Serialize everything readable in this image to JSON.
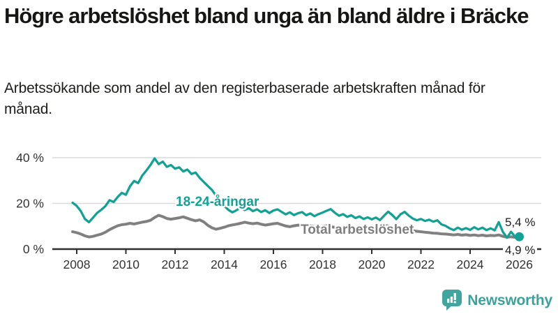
{
  "header": {
    "title": "Högre arbetslöshet bland unga än bland äldre i Bräcke",
    "subtitle": "Arbetssökande som andel av den registerbaserade arbetskraften månad för månad."
  },
  "footer": {
    "brand": "Newsworthy",
    "brand_color": "#3ba29b"
  },
  "chart_data": {
    "type": "line",
    "title": "Högre arbetslöshet bland unga än bland äldre i Bräcke",
    "subtitle": "Arbetssökande som andel av den registerbaserade arbetskraften månad för månad.",
    "grid": "horizontal-only",
    "legend_position": "inline-labels",
    "xlim": [
      2007.8,
      2026.2
    ],
    "ylim": [
      0,
      43
    ],
    "x_start": 2007.8333,
    "x_step": 0.1666667,
    "axis_color": "#2f2f2f",
    "grid_color": "#d9d9d9",
    "tick_text_color": "#333333",
    "y_ticks": [
      {
        "value": 0,
        "label": "0 %"
      },
      {
        "value": 20,
        "label": "20 %"
      },
      {
        "value": 40,
        "label": "40 %"
      }
    ],
    "x_ticks": [
      {
        "year": 2008,
        "label": "2008"
      },
      {
        "year": 2010,
        "label": "2010"
      },
      {
        "year": 2012,
        "label": "2012"
      },
      {
        "year": 2014,
        "label": "2014"
      },
      {
        "year": 2016,
        "label": "2016"
      },
      {
        "year": 2018,
        "label": "2018"
      },
      {
        "year": 2020,
        "label": "2020"
      },
      {
        "year": 2022,
        "label": "2022"
      },
      {
        "year": 2024,
        "label": "2024"
      },
      {
        "year": 2026,
        "label": "2026"
      }
    ],
    "series": [
      {
        "name": "Total arbetslöshet",
        "color": "#808080",
        "width": 4,
        "end_label": "4,9 %",
        "end_dot": false,
        "values": [
          7.6,
          7.2,
          6.6,
          5.8,
          5.3,
          5.6,
          6.1,
          6.6,
          7.4,
          8.5,
          9.4,
          10.2,
          10.7,
          10.9,
          11.3,
          11.0,
          11.4,
          11.8,
          12.1,
          12.6,
          13.8,
          14.8,
          14.2,
          13.4,
          13.1,
          13.4,
          13.7,
          14.1,
          13.5,
          12.9,
          12.4,
          12.8,
          11.9,
          10.4,
          9.3,
          8.7,
          9.1,
          9.6,
          10.2,
          10.6,
          10.9,
          11.3,
          11.8,
          11.4,
          11.1,
          11.4,
          10.9,
          10.5,
          10.8,
          11.1,
          11.3,
          10.7,
          10.1,
          9.8,
          10.2,
          10.5,
          10.3,
          9.9,
          10.2,
          10.0,
          9.7,
          10.0,
          10.2,
          9.8,
          9.5,
          9.2,
          9.5,
          9.2,
          9.0,
          8.8,
          9.0,
          8.7,
          8.9,
          9.2,
          9.5,
          9.9,
          10.4,
          10.1,
          9.7,
          9.3,
          9.0,
          8.7,
          8.4,
          8.1,
          7.8,
          7.6,
          7.4,
          7.2,
          7.0,
          6.9,
          6.7,
          6.6,
          6.4,
          6.2,
          6.4,
          6.1,
          6.3,
          6.0,
          6.2,
          5.9,
          6.1,
          5.8,
          6.0,
          5.9,
          6.2,
          5.6,
          5.2,
          5.4,
          5.1,
          4.9
        ]
      },
      {
        "name": "18-24-åringar",
        "color": "#12a193",
        "width": 3.3,
        "end_label": "5,4 %",
        "end_dot": true,
        "values": [
          20.3,
          18.9,
          16.6,
          13.2,
          11.8,
          13.8,
          15.9,
          17.2,
          18.8,
          21.4,
          20.6,
          22.8,
          24.6,
          23.8,
          27.5,
          29.8,
          28.9,
          32.2,
          34.4,
          36.8,
          39.7,
          37.2,
          38.3,
          36.0,
          36.8,
          35.2,
          35.8,
          34.0,
          34.8,
          32.9,
          33.5,
          31.2,
          29.4,
          27.6,
          25.9,
          23.4,
          20.8,
          18.9,
          17.2,
          16.1,
          17.0,
          18.2,
          17.1,
          17.9,
          16.6,
          17.4,
          16.2,
          17.0,
          15.8,
          16.9,
          17.4,
          16.3,
          15.2,
          16.1,
          14.9,
          15.7,
          16.2,
          14.8,
          15.6,
          14.4,
          15.3,
          16.0,
          16.8,
          17.5,
          15.9,
          14.6,
          15.3,
          14.1,
          14.8,
          13.6,
          14.3,
          13.2,
          13.9,
          13.0,
          13.8,
          12.7,
          14.6,
          16.4,
          14.9,
          13.1,
          15.2,
          16.3,
          14.7,
          13.4,
          12.6,
          13.2,
          12.3,
          12.9,
          12.0,
          12.6,
          10.8,
          10.2,
          9.1,
          8.3,
          9.4,
          8.5,
          9.2,
          8.4,
          9.6,
          8.6,
          9.4,
          8.3,
          9.1,
          8.2,
          11.8,
          7.5,
          5.0,
          7.6,
          5.3,
          5.4
        ]
      }
    ]
  }
}
